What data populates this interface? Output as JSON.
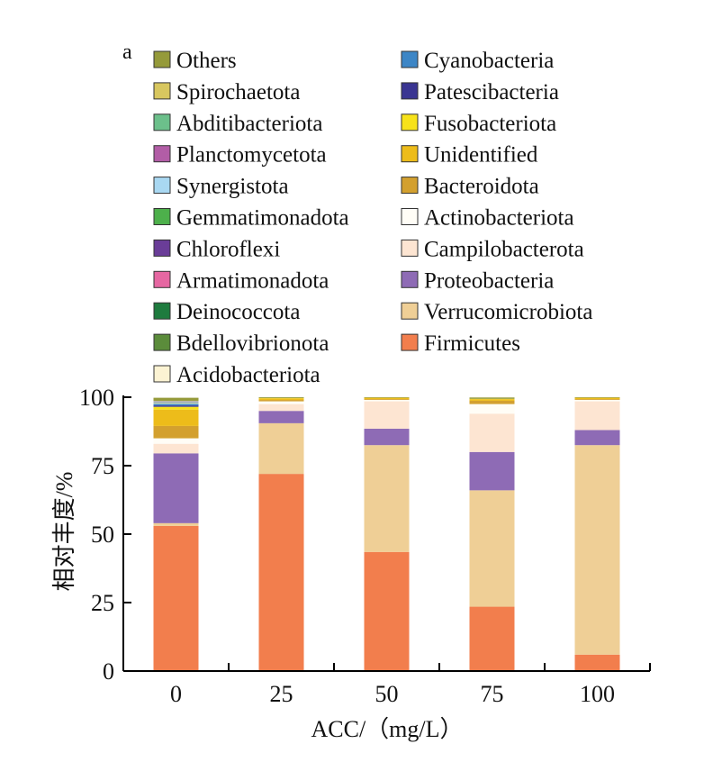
{
  "panel_label": "a",
  "chart_data": {
    "type": "bar",
    "stacked": true,
    "categories": [
      "0",
      "25",
      "50",
      "75",
      "100"
    ],
    "xlabel": "ACC/（mg/L）",
    "ylabel": "相对丰度/%",
    "ylim": [
      0,
      100
    ],
    "yticks": [
      "0",
      "25",
      "50",
      "75",
      "100"
    ],
    "legend_position": "top",
    "series": [
      {
        "name": "Firmicutes",
        "color": "#F27E4D",
        "values": [
          53.0,
          72.0,
          43.5,
          23.5,
          6.0
        ]
      },
      {
        "name": "Verrucomicrobiota",
        "color": "#EFCF96",
        "values": [
          1.0,
          18.5,
          39.0,
          42.5,
          76.5
        ]
      },
      {
        "name": "Proteobacteria",
        "color": "#8E6BB5",
        "values": [
          25.5,
          4.5,
          6.0,
          14.0,
          5.5
        ]
      },
      {
        "name": "Campilobacterota",
        "color": "#FDE5D2",
        "values": [
          3.5,
          2.5,
          10.0,
          14.0,
          10.5
        ]
      },
      {
        "name": "Actinobacteriota",
        "color": "#FFFDF6",
        "values": [
          2.0,
          1.0,
          0.5,
          3.5,
          0.5
        ]
      },
      {
        "name": "Bacteroidota",
        "color": "#D3A02F",
        "values": [
          4.5,
          0.5,
          0.3,
          1.2,
          0.3
        ]
      },
      {
        "name": "Unidentified",
        "color": "#EDBC1A",
        "values": [
          6.0,
          0.6,
          0.5,
          0.6,
          0.5
        ]
      },
      {
        "name": "Fusobacteriota",
        "color": "#F7E21A",
        "values": [
          1.0,
          0.1,
          0.0,
          0.1,
          0.0
        ]
      },
      {
        "name": "Patescibacteria",
        "color": "#3A3592",
        "values": [
          0.5,
          0.0,
          0.0,
          0.0,
          0.0
        ]
      },
      {
        "name": "Cyanobacteria",
        "color": "#3D86C6",
        "values": [
          0.6,
          0.0,
          0.0,
          0.0,
          0.0
        ]
      },
      {
        "name": "Acidobacteriota",
        "color": "#FCF3D3",
        "values": [
          0.3,
          0.0,
          0.0,
          0.0,
          0.0
        ]
      },
      {
        "name": "Bdellovibrionota",
        "color": "#5B8C3B",
        "values": [
          0.1,
          0.0,
          0.0,
          0.0,
          0.0
        ]
      },
      {
        "name": "Deinococcota",
        "color": "#1E7B3E",
        "values": [
          0.1,
          0.0,
          0.0,
          0.0,
          0.0
        ]
      },
      {
        "name": "Armatimonadota",
        "color": "#E667A2",
        "values": [
          0.0,
          0.0,
          0.0,
          0.0,
          0.0
        ]
      },
      {
        "name": "Chloroflexi",
        "color": "#6A3D98",
        "values": [
          0.1,
          0.0,
          0.0,
          0.0,
          0.0
        ]
      },
      {
        "name": "Gemmatimonadota",
        "color": "#4DB04B",
        "values": [
          0.0,
          0.0,
          0.0,
          0.0,
          0.0
        ]
      },
      {
        "name": "Synergistota",
        "color": "#A9D8F2",
        "values": [
          0.2,
          0.0,
          0.0,
          0.0,
          0.0
        ]
      },
      {
        "name": "Planctomycetota",
        "color": "#B25DA6",
        "values": [
          0.1,
          0.0,
          0.0,
          0.0,
          0.0
        ]
      },
      {
        "name": "Abditibacteriota",
        "color": "#6CC08B",
        "values": [
          0.1,
          0.0,
          0.0,
          0.0,
          0.0
        ]
      },
      {
        "name": "Spirochaetota",
        "color": "#D8C75F",
        "values": [
          0.1,
          0.0,
          0.0,
          0.0,
          0.0
        ]
      },
      {
        "name": "Others",
        "color": "#959A3A",
        "values": [
          1.1,
          0.3,
          0.2,
          0.5,
          0.2
        ]
      }
    ],
    "legend_columns": [
      [
        "Others",
        "Spirochaetota",
        "Abditibacteriota",
        "Planctomycetota",
        "Synergistota",
        "Gemmatimonadota",
        "Chloroflexi",
        "Armatimonadota",
        "Deinococcota",
        "Bdellovibrionota",
        "Acidobacteriota"
      ],
      [
        "Cyanobacteria",
        "Patescibacteria",
        "Fusobacteriota",
        "Unidentified",
        "Bacteroidota",
        "Actinobacteriota",
        "Campilobacterota",
        "Proteobacteria",
        "Verrucomicrobiota",
        "Firmicutes"
      ]
    ]
  }
}
